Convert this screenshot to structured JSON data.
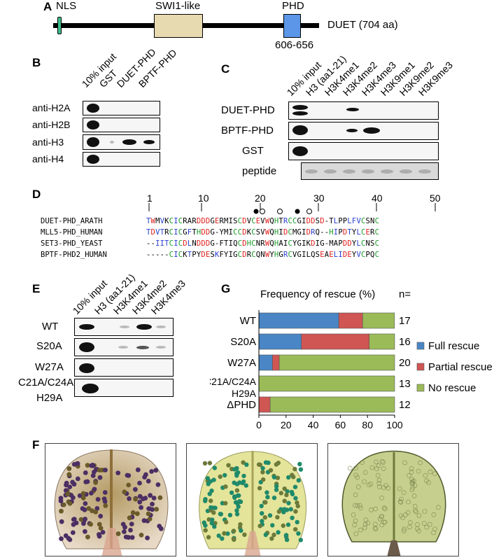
{
  "panelA": {
    "letter": "A",
    "nls": "NLS",
    "swi": "SWI1-like",
    "phd": "PHD",
    "phd_range": "606-656",
    "protein": "DUET (704 aa)"
  },
  "panelB": {
    "letter": "B",
    "lanes": [
      "10% input",
      "GST",
      "DUET-PHD",
      "BPTF-PHD"
    ],
    "rows": [
      "anti-H2A",
      "anti-H2B",
      "anti-H3",
      "anti-H4"
    ]
  },
  "panelC": {
    "letter": "C",
    "lanes": [
      "10% input",
      "H3 (aa1-21)",
      "H3K4me1",
      "H3K4me2",
      "H3K4me3",
      "H3K9me1",
      "H3K9me2",
      "H3K9me3"
    ],
    "rows": [
      "DUET-PHD",
      "BPTF-PHD",
      "GST",
      "peptide"
    ]
  },
  "panelD": {
    "letter": "D",
    "ticks": [
      "1",
      "10",
      "20",
      "30",
      "40",
      "50"
    ],
    "names": [
      "DUET-PHD_ARATH",
      "MLL5-PHD_HUMAN",
      "SET3-PHD_YEAST",
      "BPTF-PHD2_HUMAN"
    ],
    "sequences": [
      "TWMVKCICRARDDDGERMISCDVCEVWQHTRCCGIDDSD-TLPPLFVCSNC",
      "TDVTRCICGFTHDDG-YMICCDKCSVWQHIDCMGIDRQ--HIPDTYLCERC",
      "--IITCICDLNDDDG-FTIQCDHCNRWQHAICYGIKDIG-MAPDDYLCNSC",
      "-----CICKTPYDESKFYIGCDRCQNWYHGRCVGILQSEAELIDEYVCPQC"
    ]
  },
  "panelE": {
    "letter": "E",
    "lanes": [
      "10% input",
      "H3 (aa1-21)",
      "H3K4me1",
      "H3K4me2",
      "H3K4me3"
    ],
    "rows": [
      "WT",
      "S20A",
      "W27A",
      "C21A/C24A",
      "H29A"
    ]
  },
  "panelG": {
    "letter": "G",
    "title": "Frequency of rescue (%)",
    "n_header": "n=",
    "legend": [
      "Full rescue",
      "Partial rescue",
      "No rescue"
    ]
  },
  "panelF": {
    "letter": "F"
  },
  "colors": {
    "full": "#4a86c5",
    "partial": "#cf5653",
    "none": "#9bbb58"
  },
  "chart_data": {
    "type": "bar",
    "orientation": "horizontal",
    "stacked": true,
    "title": "Frequency of rescue (%)",
    "categories": [
      "WT",
      "S20A",
      "W27A",
      "C21A/C24A H29A",
      "ΔPHD"
    ],
    "n": [
      "17",
      "16",
      "20",
      "13",
      "12"
    ],
    "series": [
      {
        "name": "Full rescue",
        "values": [
          58.8,
          31.3,
          10,
          0,
          0
        ]
      },
      {
        "name": "Partial rescue",
        "values": [
          17.6,
          50,
          5,
          0,
          8.3
        ]
      },
      {
        "name": "No rescue",
        "values": [
          23.5,
          18.7,
          85,
          100,
          91.7
        ]
      }
    ],
    "xlim": [
      0,
      100
    ],
    "xticks": [
      "0",
      "20",
      "40",
      "60",
      "80",
      "100"
    ]
  }
}
